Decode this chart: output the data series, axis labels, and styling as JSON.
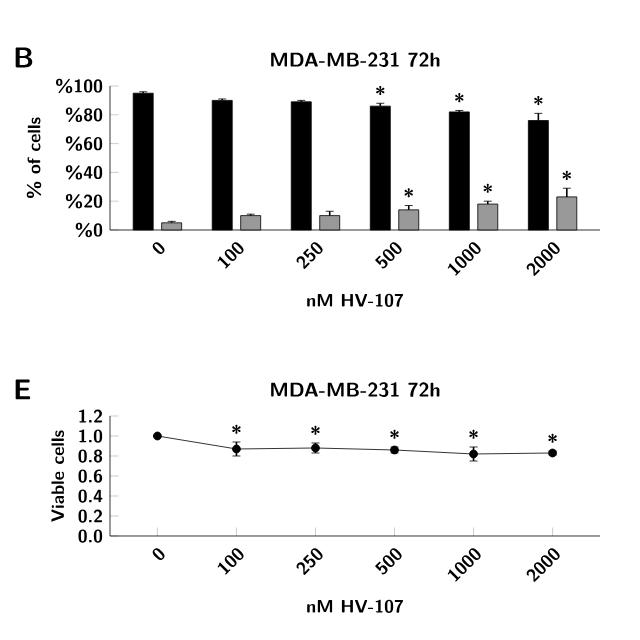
{
  "chart_data": [
    {
      "type": "bar",
      "title": "MDA-MB-231 72h",
      "xlabel": "nM HV-107",
      "ylabel": "% of cells",
      "categories": [
        "0",
        "100",
        "250",
        "500",
        "1000",
        "2000"
      ],
      "series": [
        {
          "color": "#000000",
          "values": [
            95,
            90,
            89,
            86,
            82,
            76
          ],
          "errors": [
            1,
            1,
            1,
            2,
            1,
            5
          ]
        },
        {
          "color": "#999999",
          "values": [
            5,
            10,
            10,
            14,
            18,
            23
          ],
          "errors": [
            1,
            1,
            3,
            3,
            2,
            6
          ]
        }
      ],
      "ylim": [
        0,
        100
      ],
      "yticks": [
        {
          "value": 0,
          "label": "%0"
        },
        {
          "value": 20,
          "label": "%20"
        },
        {
          "value": 40,
          "label": "%40"
        },
        {
          "value": 60,
          "label": "%60"
        },
        {
          "value": 80,
          "label": "%80"
        },
        {
          "value": 100,
          "label": "%100"
        }
      ],
      "annotations": [
        "B",
        {
          "text": "*",
          "x": "500",
          "y": 88
        },
        {
          "text": "*",
          "x": "1000",
          "y": 83
        },
        {
          "text": "*",
          "x": "2000",
          "y": 81
        },
        {
          "text": "*",
          "x": "500",
          "y": 17
        },
        {
          "text": "*",
          "x": "1000",
          "y": 20
        },
        {
          "text": "*",
          "x": "2000",
          "y": 29
        }
      ]
    },
    {
      "type": "line",
      "title": "MDA-MB-231  72h",
      "xlabel": "nM HV-107",
      "ylabel": "Viable cells",
      "marker": "circle",
      "categories": [
        "0",
        "100",
        "250",
        "500",
        "1000",
        "2000"
      ],
      "series": [
        {
          "color": "#000000",
          "values": [
            1.0,
            0.87,
            0.88,
            0.86,
            0.82,
            0.83
          ],
          "errors": [
            0,
            0.07,
            0.05,
            0.03,
            0.07,
            0.02
          ]
        }
      ],
      "ylim": [
        0,
        1.2
      ],
      "yticks": [
        {
          "value": 0,
          "label": "0.0"
        },
        {
          "value": 0.2,
          "label": "0.2"
        },
        {
          "value": 0.4,
          "label": "0.4"
        },
        {
          "value": 0.6,
          "label": "0.6"
        },
        {
          "value": 0.8,
          "label": "0.8"
        },
        {
          "value": 1.0,
          "label": "1.0"
        },
        {
          "value": 1.2,
          "label": "1.2"
        }
      ],
      "annotations": [
        "E",
        {
          "text": "*",
          "x": "100",
          "y": 0.94
        },
        {
          "text": "*",
          "x": "250",
          "y": 0.93
        },
        {
          "text": "*",
          "x": "500",
          "y": 0.89
        },
        {
          "text": "*",
          "x": "1000",
          "y": 0.89
        },
        {
          "text": "*",
          "x": "2000",
          "y": 0.85
        }
      ]
    }
  ]
}
